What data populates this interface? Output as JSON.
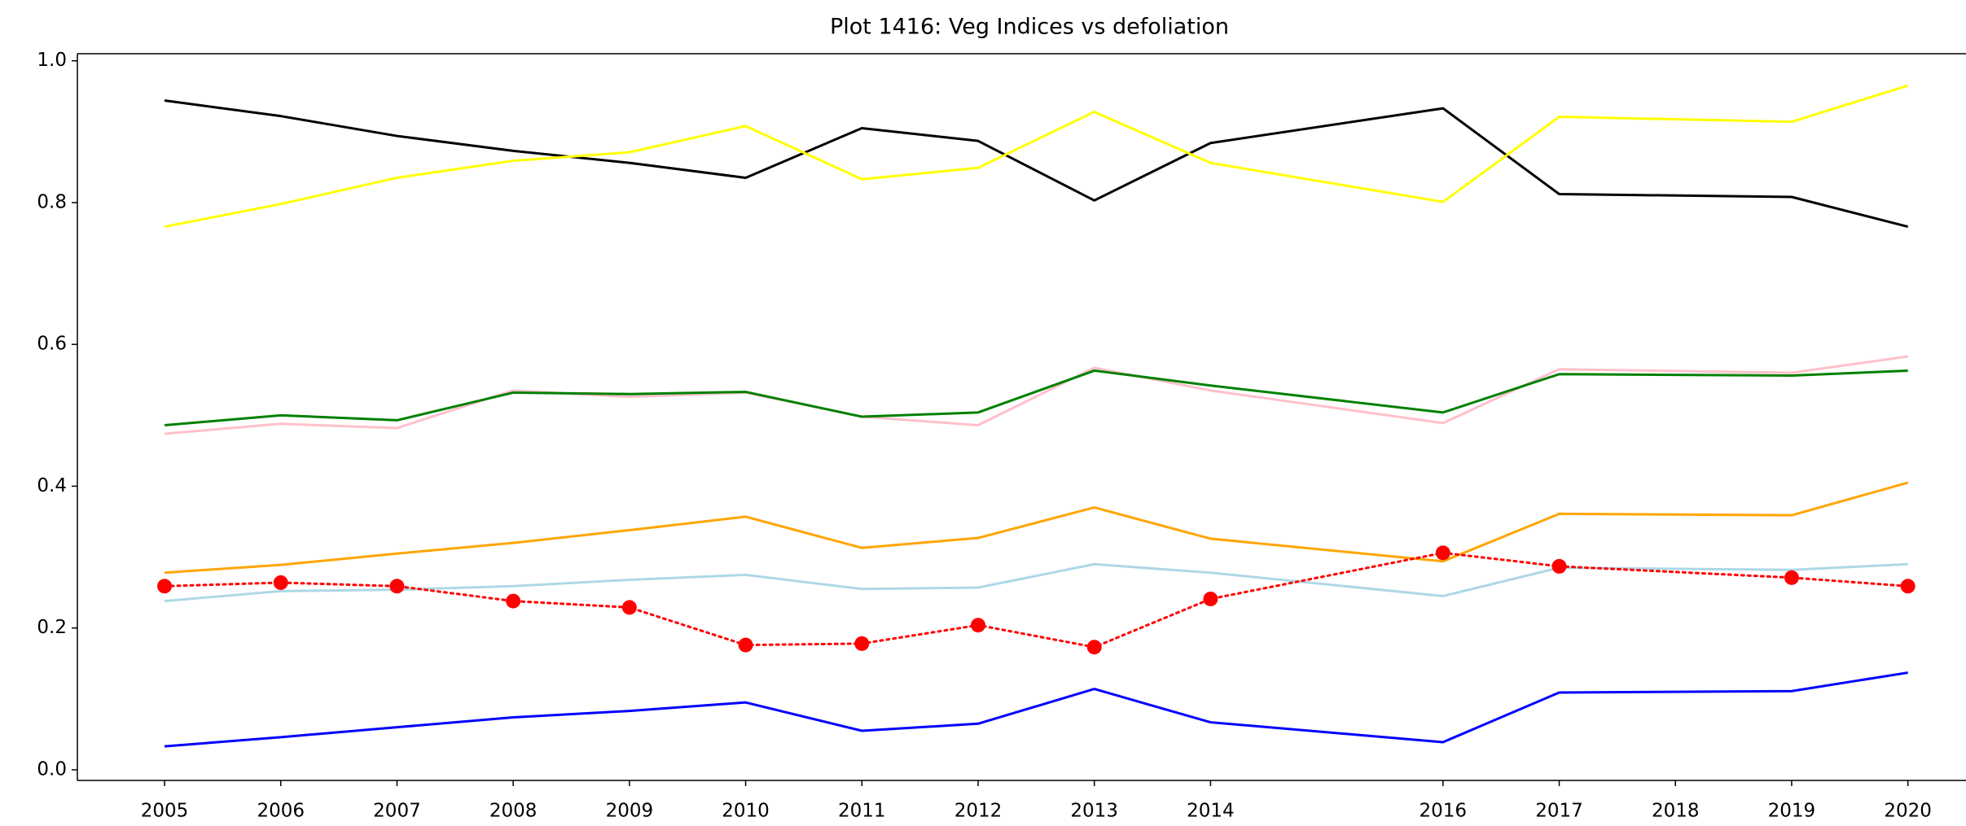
{
  "chart_data": {
    "type": "line",
    "title": "Plot 1416: Veg Indices vs defoliation",
    "x": [
      2005,
      2006,
      2007,
      2008,
      2009,
      2010,
      2011,
      2012,
      2013,
      2014,
      2016,
      2017,
      2019,
      2020
    ],
    "series": [
      {
        "color": "#000000",
        "values": [
          0.944,
          0.922,
          0.894,
          0.873,
          0.856,
          0.835,
          0.905,
          0.887,
          0.803,
          0.884,
          0.933,
          0.812,
          0.808,
          0.766
        ]
      },
      {
        "color": "#ffff00",
        "values": [
          0.766,
          0.798,
          0.835,
          0.859,
          0.871,
          0.908,
          0.833,
          0.849,
          0.928,
          0.856,
          0.801,
          0.921,
          0.914,
          0.965
        ]
      },
      {
        "color": "#ffc0cb",
        "values": [
          0.474,
          0.488,
          0.482,
          0.535,
          0.526,
          0.532,
          0.498,
          0.486,
          0.567,
          0.535,
          0.489,
          0.565,
          0.56,
          0.583
        ]
      },
      {
        "color": "#008000",
        "values": [
          0.486,
          0.5,
          0.493,
          0.532,
          0.53,
          0.533,
          0.498,
          0.504,
          0.563,
          0.542,
          0.504,
          0.558,
          0.556,
          0.563
        ]
      },
      {
        "color": "#ffa500",
        "values": [
          0.278,
          0.289,
          0.305,
          0.32,
          0.338,
          0.357,
          0.313,
          0.327,
          0.37,
          0.326,
          0.294,
          0.361,
          0.359,
          0.405
        ]
      },
      {
        "color": "#add8e6",
        "values": [
          0.238,
          0.252,
          0.254,
          0.259,
          0.268,
          0.275,
          0.255,
          0.257,
          0.29,
          0.278,
          0.245,
          0.285,
          0.282,
          0.29
        ]
      },
      {
        "color": "#ff0000",
        "linestyle": "dotted",
        "marker": "o",
        "values": [
          0.259,
          0.264,
          0.259,
          0.238,
          0.229,
          0.176,
          0.178,
          0.204,
          0.173,
          0.241,
          0.306,
          0.287,
          0.271,
          0.259
        ]
      },
      {
        "color": "#0000ff",
        "values": [
          0.033,
          0.046,
          0.06,
          0.074,
          0.083,
          0.095,
          0.055,
          0.065,
          0.114,
          0.067,
          0.039,
          0.109,
          0.111,
          0.137
        ]
      }
    ],
    "xlim": [
      2004.25,
      2020.5
    ],
    "xticks": [
      2005,
      2006,
      2007,
      2008,
      2009,
      2010,
      2011,
      2012,
      2013,
      2014,
      2016,
      2017,
      2018,
      2019,
      2020
    ],
    "ylim": [
      -0.015,
      1.01
    ],
    "yticks": [
      {
        "value": 0,
        "label": "0.0"
      },
      0.2,
      0.4,
      0.6,
      0.8,
      {
        "value": 1,
        "label": "1.0"
      }
    ],
    "grid": false
  }
}
